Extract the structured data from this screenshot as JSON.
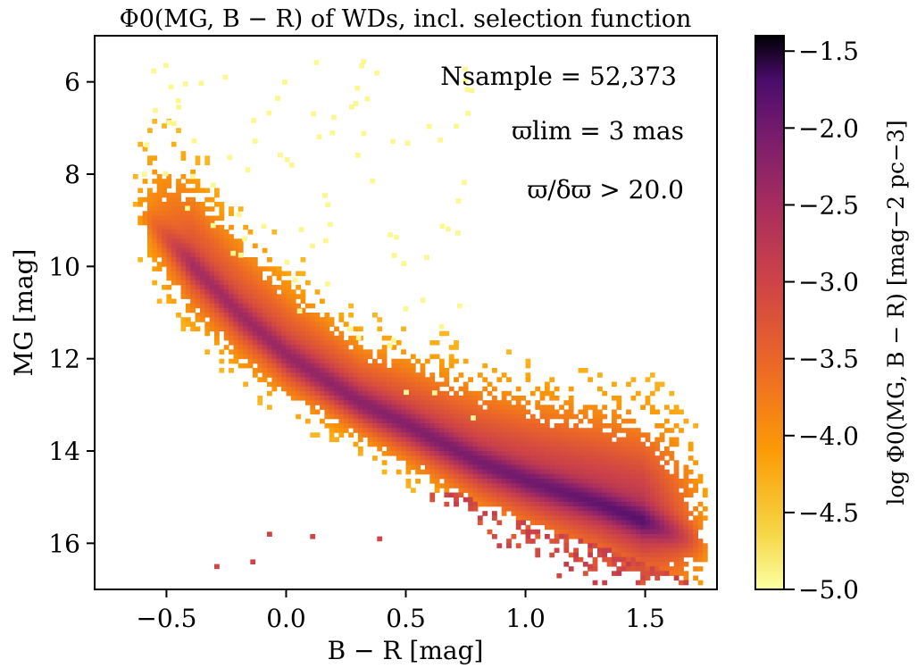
{
  "chart_data": {
    "type": "heatmap",
    "title": "Φ0(MG, B − R) of WDs, incl. selection function",
    "xlabel": "B − R [mag]",
    "ylabel": "MG [mag]",
    "xlim": [
      -0.8,
      1.8
    ],
    "ylim": [
      17.0,
      5.0
    ],
    "y_inverted": true,
    "x_ticks": [
      -0.5,
      0.0,
      0.5,
      1.0,
      1.5
    ],
    "x_tick_labels": [
      "−0.5",
      "0.0",
      "0.5",
      "1.0",
      "1.5"
    ],
    "y_ticks": [
      6,
      8,
      10,
      12,
      14,
      16
    ],
    "y_tick_labels": [
      "6",
      "8",
      "10",
      "12",
      "14",
      "16"
    ],
    "grid": false,
    "colormap": "inferno_r",
    "colorbar": {
      "label": "log Φ0(MG, B − R) [mag−2 pc−3]",
      "range": [
        -5.0,
        -1.4
      ],
      "ticks": [
        -5.0,
        -4.5,
        -4.0,
        -3.5,
        -3.0,
        -2.5,
        -2.0,
        -1.5
      ],
      "tick_labels": [
        "−5.0",
        "−4.5",
        "−4.0",
        "−3.5",
        "−3.0",
        "−2.5",
        "−2.0",
        "−1.5"
      ]
    },
    "annotations": [
      {
        "text": "Nsample = 52,373"
      },
      {
        "text": "ϖlim = 3 mas"
      },
      {
        "text": "ϖ/δϖ > 20.0"
      }
    ],
    "approx_ridge": {
      "description": "main white dwarf cooling sequence, density peak along ridge",
      "points": [
        {
          "x": -0.5,
          "y": 9.4
        },
        {
          "x": -0.2,
          "y": 11.0
        },
        {
          "x": 0.0,
          "y": 11.9
        },
        {
          "x": 0.3,
          "y": 12.9
        },
        {
          "x": 0.5,
          "y": 13.4
        },
        {
          "x": 0.8,
          "y": 14.2
        },
        {
          "x": 1.0,
          "y": 14.6
        },
        {
          "x": 1.3,
          "y": 15.1
        },
        {
          "x": 1.5,
          "y": 15.5
        }
      ]
    }
  }
}
